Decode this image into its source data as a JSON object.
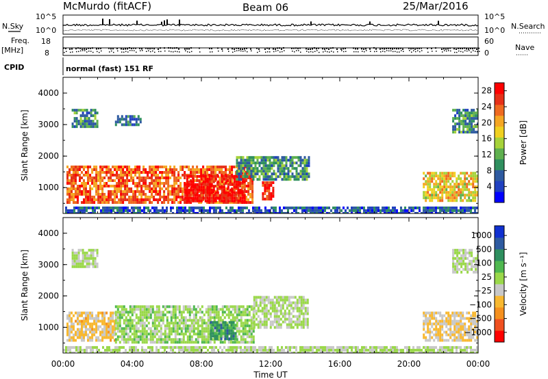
{
  "header": {
    "station": "McMurdo (fitACF)",
    "beam": "Beam 06",
    "date": "25/Mar/2016"
  },
  "status_panels": {
    "nsky_label": "N.Sky",
    "nsearch_label": "N.Search",
    "noise_ticks": [
      "10^5",
      "10^0"
    ],
    "freq_label": "Freq.",
    "freq_unit": "[MHz]",
    "freq_ticks": [
      "18",
      "8"
    ],
    "nave_label": "Nave",
    "nave_ticks": [
      "60",
      "0"
    ],
    "cpid_label": "CPID",
    "cpid_text": "normal (fast) 151 RF"
  },
  "x_axis": {
    "label": "Time UT",
    "ticks": [
      "00:00",
      "04:00",
      "08:00",
      "12:00",
      "16:00",
      "20:00",
      "00:00"
    ]
  },
  "chart_data": [
    {
      "type": "heatmap",
      "parameter": "Power",
      "ylabel": "Slant Range [km]",
      "xlabel": "Time UT",
      "x_range_hours": [
        0,
        24
      ],
      "ylim": [
        180,
        4500
      ],
      "y_ticks": [
        1000,
        2000,
        3000,
        4000
      ],
      "colorbar": {
        "label": "Power [dB]",
        "ticks": [
          "4",
          "8",
          "12",
          "16",
          "20",
          "24",
          "28"
        ],
        "range": [
          0,
          30
        ],
        "colors": [
          "#0000ff",
          "#2040c0",
          "#2e5aa0",
          "#2f8f5f",
          "#5fb04f",
          "#a6d23a",
          "#f0d020",
          "#f5a623",
          "#ef6a20",
          "#e63018",
          "#ff0000"
        ]
      },
      "regions": [
        {
          "t": [
            0.2,
            11.0
          ],
          "r": [
            550,
            1700
          ],
          "value": 24
        },
        {
          "t": [
            7.0,
            10.5
          ],
          "r": [
            550,
            1400
          ],
          "value": 29
        },
        {
          "t": [
            11.5,
            12.2
          ],
          "r": [
            600,
            1200
          ],
          "value": 27
        },
        {
          "t": [
            10.0,
            14.2
          ],
          "r": [
            1300,
            2000
          ],
          "value": 10
        },
        {
          "t": [
            0.5,
            2.0
          ],
          "r": [
            2900,
            3500
          ],
          "value": 9
        },
        {
          "t": [
            3.0,
            4.5
          ],
          "r": [
            3000,
            3300
          ],
          "value": 8
        },
        {
          "t": [
            20.8,
            24.0
          ],
          "r": [
            600,
            1500
          ],
          "value": 18
        },
        {
          "t": [
            22.5,
            24.0
          ],
          "r": [
            2800,
            3500
          ],
          "value": 10
        },
        {
          "t": [
            0.0,
            24.0
          ],
          "r": [
            200,
            400
          ],
          "value": 6
        }
      ]
    },
    {
      "type": "heatmap",
      "parameter": "Velocity",
      "ylabel": "Slant Range [km]",
      "xlabel": "Time UT",
      "x_range_hours": [
        0,
        24
      ],
      "ylim": [
        180,
        4500
      ],
      "y_ticks": [
        1000,
        2000,
        3000,
        4000
      ],
      "colorbar": {
        "label": "Velocity [m s⁻¹]",
        "ticks": [
          "1000",
          "500",
          "100",
          "25",
          "−25",
          "−100",
          "−500",
          "−1000"
        ],
        "range": [
          -1200,
          1200
        ],
        "colors": [
          "#ff0000",
          "#f05020",
          "#f5901e",
          "#f8b830",
          "#c8c8c8",
          "#9ad84a",
          "#4fb84f",
          "#2e8f5f",
          "#2e5aa0",
          "#1030d0"
        ]
      },
      "regions": [
        {
          "t": [
            0.2,
            3.0
          ],
          "r": [
            550,
            1500
          ],
          "value": -300
        },
        {
          "t": [
            3.0,
            11.0
          ],
          "r": [
            550,
            1700
          ],
          "value": 120
        },
        {
          "t": [
            8.5,
            10.0
          ],
          "r": [
            600,
            1200
          ],
          "value": 600
        },
        {
          "t": [
            11.0,
            14.2
          ],
          "r": [
            1000,
            2000
          ],
          "value": 40
        },
        {
          "t": [
            0.5,
            2.0
          ],
          "r": [
            2900,
            3500
          ],
          "value": 0
        },
        {
          "t": [
            20.8,
            24.0
          ],
          "r": [
            600,
            1500
          ],
          "value": -200
        },
        {
          "t": [
            22.5,
            24.0
          ],
          "r": [
            2800,
            3500
          ],
          "value": 0
        },
        {
          "t": [
            0.0,
            24.0
          ],
          "r": [
            200,
            400
          ],
          "value": 0
        }
      ]
    }
  ]
}
